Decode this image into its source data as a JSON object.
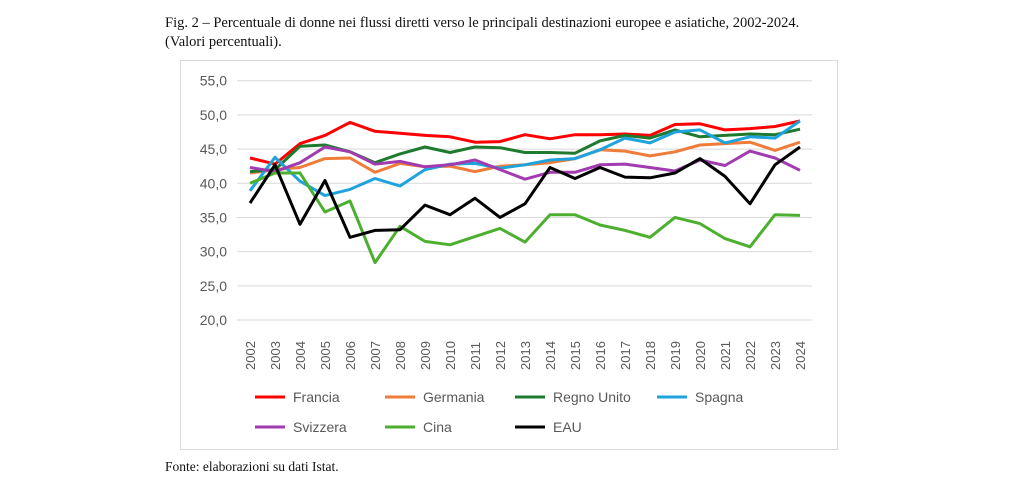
{
  "title_line1": "Fig. 2 – Percentuale di donne nei flussi diretti verso le principali destinazioni europee e asiatiche, 2002-2024.",
  "title_line2": "(Valori percentuali).",
  "source": "Fonte: elaborazioni su dati Istat.",
  "chart_data": {
    "type": "line",
    "title": "",
    "xlabel": "",
    "ylabel": "",
    "ylim": [
      20,
      55
    ],
    "yticks": [
      "20,0",
      "25,0",
      "30,0",
      "35,0",
      "40,0",
      "45,0",
      "50,0",
      "55,0"
    ],
    "grid": true,
    "legend_placement": "bottom",
    "x": [
      "2002",
      "2003",
      "2004",
      "2005",
      "2006",
      "2007",
      "2008",
      "2009",
      "2010",
      "2011",
      "2012",
      "2013",
      "2014",
      "2015",
      "2016",
      "2017",
      "2018",
      "2019",
      "2020",
      "2021",
      "2022",
      "2023",
      "2024"
    ],
    "series": [
      {
        "name": "Francia",
        "color": "#ff0000",
        "values": [
          43.7,
          42.8,
          45.8,
          47.0,
          48.9,
          47.6,
          47.3,
          47.0,
          46.8,
          46.0,
          46.1,
          47.1,
          46.5,
          47.1,
          47.1,
          47.2,
          47.0,
          48.6,
          48.7,
          47.8,
          48.0,
          48.3,
          49.1
        ]
      },
      {
        "name": "Germania",
        "color": "#f07c3a",
        "values": [
          41.5,
          42.0,
          42.3,
          43.6,
          43.7,
          41.6,
          42.9,
          42.4,
          42.5,
          41.7,
          42.5,
          42.7,
          43.0,
          43.6,
          44.9,
          44.7,
          44.0,
          44.6,
          45.6,
          45.8,
          46.0,
          44.8,
          46.0
        ]
      },
      {
        "name": "Regno Unito",
        "color": "#1e7a2e",
        "values": [
          41.7,
          42.0,
          45.4,
          45.6,
          44.6,
          43.0,
          44.3,
          45.3,
          44.5,
          45.3,
          45.2,
          44.5,
          44.5,
          44.4,
          46.2,
          47.0,
          46.6,
          47.8,
          46.8,
          47.0,
          47.2,
          47.1,
          47.9
        ]
      },
      {
        "name": "Spagna",
        "color": "#1fa3dc",
        "values": [
          38.9,
          43.8,
          40.3,
          38.2,
          39.1,
          40.7,
          39.6,
          42.0,
          42.8,
          42.9,
          42.2,
          42.7,
          43.4,
          43.6,
          44.9,
          46.6,
          45.9,
          47.5,
          47.8,
          45.9,
          46.8,
          46.6,
          49.1
        ]
      },
      {
        "name": "Svizzera",
        "color": "#a23bb0",
        "values": [
          42.3,
          41.7,
          43.0,
          45.3,
          44.6,
          42.8,
          43.2,
          42.4,
          42.7,
          43.4,
          42.0,
          40.6,
          41.6,
          41.6,
          42.7,
          42.8,
          42.3,
          41.8,
          43.4,
          42.6,
          44.7,
          43.7,
          41.9
        ]
      },
      {
        "name": "Cina",
        "color": "#4caf2f",
        "values": [
          40.0,
          41.5,
          41.5,
          35.8,
          37.4,
          28.4,
          33.7,
          31.5,
          31.0,
          32.2,
          33.4,
          31.4,
          35.4,
          35.4,
          33.9,
          33.1,
          32.1,
          35.0,
          34.1,
          31.9,
          30.7,
          35.4,
          35.3
        ]
      },
      {
        "name": "EAU",
        "color": "#000000",
        "values": [
          37.1,
          42.7,
          34.0,
          40.4,
          32.1,
          33.1,
          33.2,
          36.8,
          35.4,
          37.8,
          35.0,
          37.0,
          42.3,
          40.7,
          42.3,
          40.9,
          40.8,
          41.5,
          43.6,
          41.0,
          37.0,
          42.7,
          45.3
        ]
      }
    ]
  }
}
